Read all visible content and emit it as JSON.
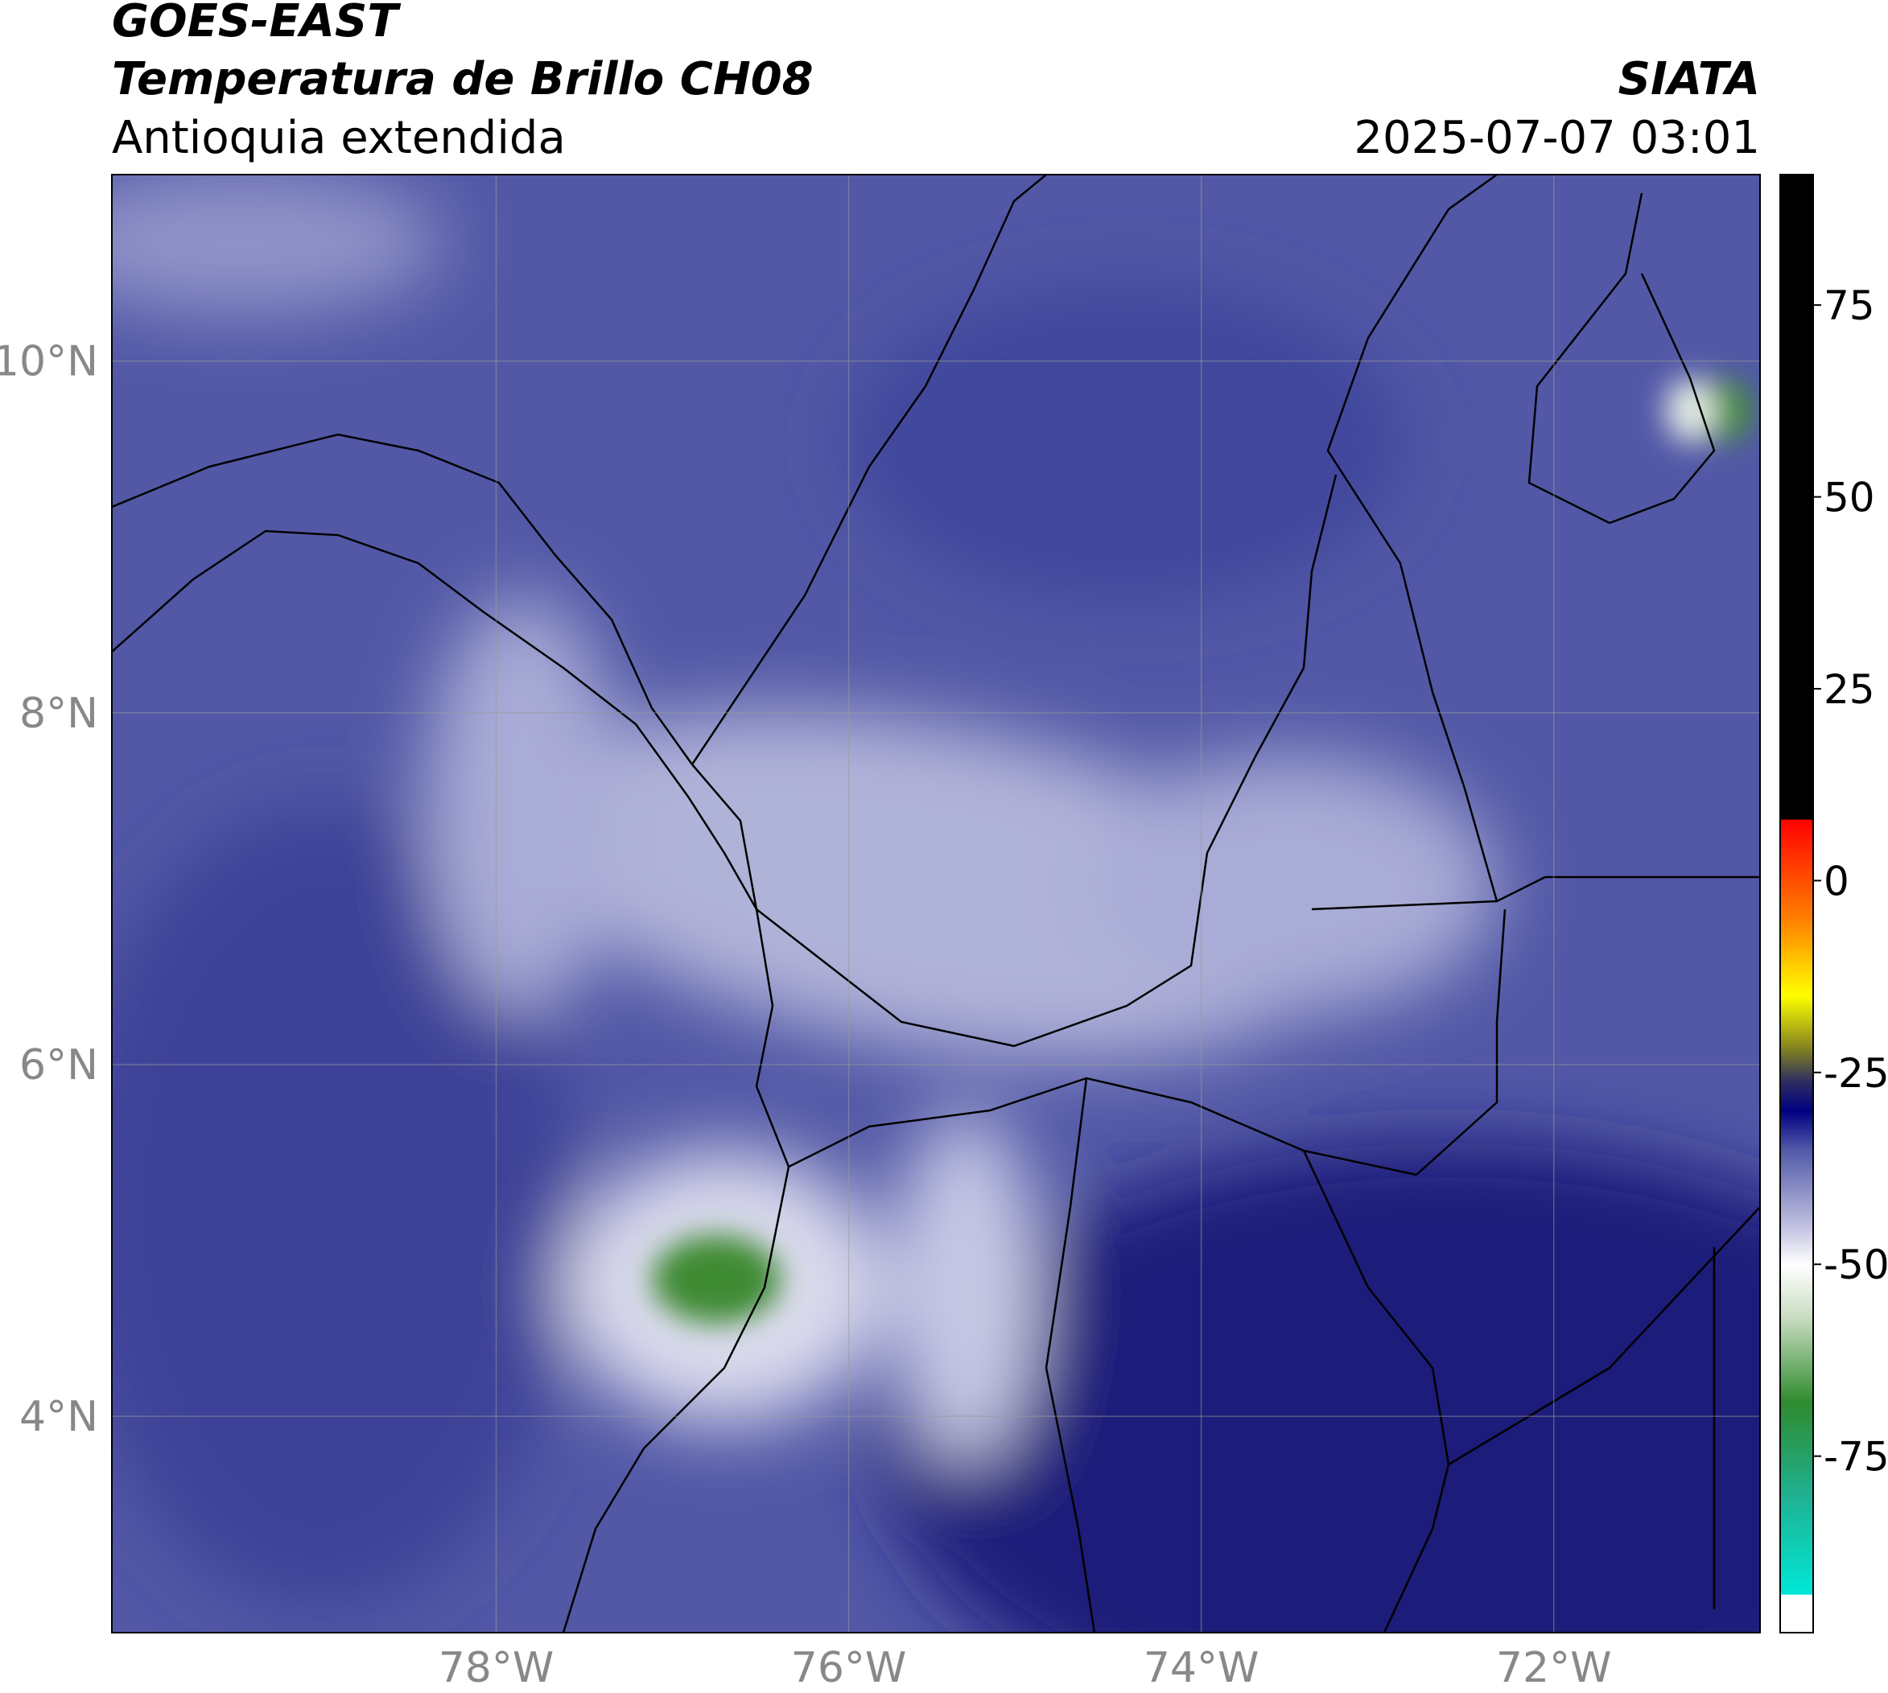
{
  "header": {
    "title_1": "GOES-EAST",
    "title_2": "Temperatura de Brillo CH08",
    "subtitle": "Antioquia extendida",
    "agency": "SIATA",
    "timestamp": "2025-07-07 03:01"
  },
  "map": {
    "xlim": [
      -80.18,
      -70.83
    ],
    "ylim": [
      2.77,
      11.06
    ],
    "xticks": [
      {
        "value": -78,
        "label": "78°W"
      },
      {
        "value": -76,
        "label": "76°W"
      },
      {
        "value": -74,
        "label": "74°W"
      },
      {
        "value": -72,
        "label": "72°W"
      }
    ],
    "yticks": [
      {
        "value": 10,
        "label": "10°N"
      },
      {
        "value": 8,
        "label": "8°N"
      },
      {
        "value": 6,
        "label": "6°N"
      },
      {
        "value": 4,
        "label": "4°N"
      }
    ],
    "grid": true
  },
  "colorbar": {
    "lim": [
      -98,
      92
    ],
    "ticks": [
      75,
      50,
      25,
      0,
      -25,
      -50,
      -75
    ],
    "bands": [
      {
        "from": -98,
        "to": -93,
        "color_low": "#ffffff",
        "color_high": "#ffffff"
      },
      {
        "from": -93,
        "to": -80,
        "color_low": "#00e8d8",
        "color_high": "#20b090"
      },
      {
        "from": -80,
        "to": -68,
        "color_low": "#20b090",
        "color_high": "#2e8b2e"
      },
      {
        "from": -68,
        "to": -57,
        "color_low": "#2e8b2e",
        "color_high": "#c8dcc0"
      },
      {
        "from": -57,
        "to": -50,
        "color_low": "#c8dcc0",
        "color_high": "#ffffff"
      },
      {
        "from": -50,
        "to": -45,
        "color_low": "#ffffff",
        "color_high": "#c0c0e0"
      },
      {
        "from": -45,
        "to": -35,
        "color_low": "#c0c0e0",
        "color_high": "#5058a8"
      },
      {
        "from": -35,
        "to": -30,
        "color_low": "#5058a8",
        "color_high": "#000080"
      },
      {
        "from": -30,
        "to": -26,
        "color_low": "#000080",
        "color_high": "#303060"
      },
      {
        "from": -26,
        "to": -22,
        "color_low": "#303060",
        "color_high": "#808020"
      },
      {
        "from": -22,
        "to": -15,
        "color_low": "#808020",
        "color_high": "#ffff00"
      },
      {
        "from": -15,
        "to": -5,
        "color_low": "#ffff00",
        "color_high": "#ff8000"
      },
      {
        "from": -5,
        "to": 8,
        "color_low": "#ff8000",
        "color_high": "#ff0000"
      },
      {
        "from": 8,
        "to": 92,
        "color_low": "#000000",
        "color_high": "#000000"
      }
    ]
  }
}
